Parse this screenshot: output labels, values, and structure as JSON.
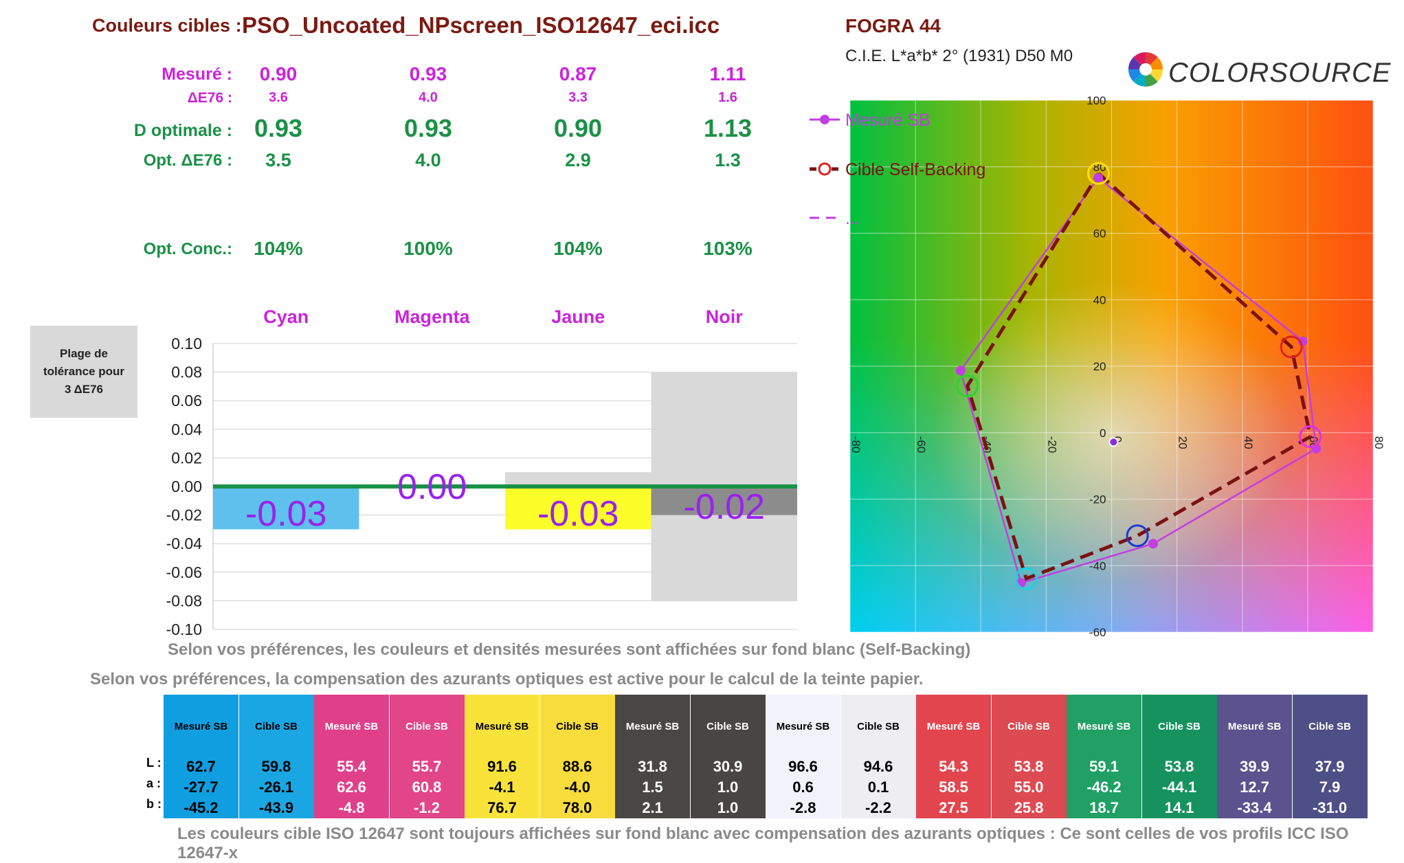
{
  "header": {
    "label": "Couleurs cibles :",
    "profile": "PSO_Uncoated_NPscreen_ISO12647_eci.icc"
  },
  "rows": {
    "mesure": {
      "label": "Mesuré :",
      "values": [
        "0.90",
        "0.93",
        "0.87",
        "1.11"
      ]
    },
    "de76": {
      "label": "ΔE76 :",
      "values": [
        "3.6",
        "4.0",
        "3.3",
        "1.6"
      ]
    },
    "dopt": {
      "label": "D optimale :",
      "values": [
        "0.93",
        "0.93",
        "0.90",
        "1.13"
      ]
    },
    "optde": {
      "label": "Opt. ΔE76 :",
      "values": [
        "3.5",
        "4.0",
        "2.9",
        "1.3"
      ]
    },
    "conc": {
      "label": "Opt. Conc.:",
      "values": [
        "104%",
        "100%",
        "104%",
        "103%"
      ]
    }
  },
  "tolerance_box": {
    "line1": "Plage de",
    "line2": "tolérance pour",
    "line3": "3 ΔE76"
  },
  "chart_data": [
    {
      "type": "bar",
      "categories": [
        "Cyan",
        "Magenta",
        "Jaune",
        "Noir"
      ],
      "values": [
        -0.03,
        0.0,
        -0.03,
        -0.02
      ],
      "labels": [
        "-0.03",
        "0.00",
        "-0.03",
        "-0.02"
      ],
      "tolerance_bands": [
        [
          0,
          0
        ],
        [
          0,
          0
        ],
        [
          -0.03,
          0.01
        ],
        [
          -0.08,
          0.08
        ]
      ],
      "bar_colors": [
        "#5ec0ec",
        "#ffffff",
        "#fdfd2a",
        "#8c8c8c"
      ],
      "ylim": [
        -0.1,
        0.1
      ],
      "yticks": [
        "0.10",
        "0.08",
        "0.06",
        "0.04",
        "0.02",
        "0.00",
        "-0.02",
        "-0.04",
        "-0.06",
        "-0.08",
        "-0.10"
      ],
      "grid": true
    },
    {
      "type": "scatter",
      "title": "FOGRA 44",
      "subtitle": "C.I.E. L*a*b* 2° (1931) D50  M0",
      "xlim": [
        -80,
        80
      ],
      "ylim": [
        -60,
        100
      ],
      "xticks": [
        "-80",
        "-60",
        "-40",
        "-20",
        "0",
        "20",
        "40",
        "60",
        "80"
      ],
      "yticks": [
        "100",
        "80",
        "60",
        "40",
        "20",
        "0",
        "-20",
        "-40",
        "-60"
      ],
      "legend": [
        "Mesuré SB",
        "Cible Self-Backing",
        "..."
      ],
      "legend_position": "top-left",
      "series": [
        {
          "name": "Mesuré SB",
          "color": "#c23ee0",
          "points": [
            [
              -4.1,
              76.7
            ],
            [
              58.5,
              27.5
            ],
            [
              62.6,
              -4.8
            ],
            [
              12.7,
              -33.4
            ],
            [
              -27.7,
              -45.2
            ],
            [
              -46.2,
              18.7
            ],
            [
              -4.1,
              76.7
            ]
          ]
        },
        {
          "name": "Cible Self-Backing",
          "color": "#7b1212",
          "points": [
            [
              -4.0,
              78.0
            ],
            [
              55.0,
              25.8
            ],
            [
              60.8,
              -1.2
            ],
            [
              7.9,
              -31.0
            ],
            [
              -26.1,
              -43.9
            ],
            [
              -44.1,
              14.1
            ],
            [
              -4.0,
              78.0
            ]
          ]
        }
      ],
      "target_circles": [
        {
          "a": -4.0,
          "b": 78.0,
          "color": "#ffe000"
        },
        {
          "a": 55.0,
          "b": 25.8,
          "color": "#e02020"
        },
        {
          "a": 60.8,
          "b": -1.2,
          "color": "#e030e0"
        },
        {
          "a": 7.9,
          "b": -31.0,
          "color": "#1a3ad0"
        },
        {
          "a": -26.1,
          "b": -43.9,
          "color": "#20d0e0"
        },
        {
          "a": -44.1,
          "b": 14.1,
          "color": "#30d030"
        }
      ],
      "paper_point": {
        "a": 0.6,
        "b": -2.8
      }
    }
  ],
  "notes": {
    "self_backing": "Selon vos préférences, les couleurs et densités mesurées sont affichées sur fond blanc (Self-Backing)",
    "azurants": "Selon vos préférences, la compensation des azurants optiques est active pour le calcul de la teinte papier.",
    "footer": "Les couleurs cible ISO 12647 sont toujours affichées sur fond blanc avec compensation des azurants optiques : Ce sont celles de vos profils ICC ISO 12647-x"
  },
  "logo": {
    "text": "COLORSOURCE"
  },
  "lab_labels": [
    "L :",
    "a :",
    "b :"
  ],
  "swatches": [
    {
      "head": "Mesuré SB",
      "bg": "#0f9ee0",
      "fg": "#000000",
      "L": "62.7",
      "a": "-27.7",
      "b": "-45.2"
    },
    {
      "head": "Cible SB",
      "bg": "#1aa6e2",
      "fg": "#000000",
      "L": "59.8",
      "a": "-26.1",
      "b": "-43.9"
    },
    {
      "head": "Mesuré SB",
      "bg": "#e0408a",
      "fg": "#ffffff",
      "L": "55.4",
      "a": "62.6",
      "b": "-4.8"
    },
    {
      "head": "Cible SB",
      "bg": "#e24588",
      "fg": "#ffffff",
      "L": "55.7",
      "a": "60.8",
      "b": "-1.2"
    },
    {
      "head": "Mesuré SB",
      "bg": "#f9e33a",
      "fg": "#000000",
      "L": "91.6",
      "a": "-4.1",
      "b": "76.7"
    },
    {
      "head": "Cible SB",
      "bg": "#f7dc3c",
      "fg": "#000000",
      "L": "88.6",
      "a": "-4.0",
      "b": "78.0"
    },
    {
      "head": "Mesuré SB",
      "bg": "#4a4644",
      "fg": "#ffffff",
      "L": "31.8",
      "a": "1.5",
      "b": "2.1"
    },
    {
      "head": "Cible SB",
      "bg": "#484544",
      "fg": "#ffffff",
      "L": "30.9",
      "a": "1.0",
      "b": "1.0"
    },
    {
      "head": "Mesuré SB",
      "bg": "#f2f3fa",
      "fg": "#000000",
      "L": "96.6",
      "a": "0.6",
      "b": "-2.8"
    },
    {
      "head": "Cible SB",
      "bg": "#eeeef2",
      "fg": "#000000",
      "L": "94.6",
      "a": "0.1",
      "b": "-2.2"
    },
    {
      "head": "Mesuré SB",
      "bg": "#e3454e",
      "fg": "#ffffff",
      "L": "54.3",
      "a": "58.5",
      "b": "27.5"
    },
    {
      "head": "Cible SB",
      "bg": "#dd4a52",
      "fg": "#ffffff",
      "L": "53.8",
      "a": "55.0",
      "b": "25.8"
    },
    {
      "head": "Mesuré SB",
      "bg": "#20a065",
      "fg": "#ffffff",
      "L": "59.1",
      "a": "-46.2",
      "b": "18.7"
    },
    {
      "head": "Cible SB",
      "bg": "#16925e",
      "fg": "#ffffff",
      "L": "53.8",
      "a": "-44.1",
      "b": "14.1"
    },
    {
      "head": "Mesuré SB",
      "bg": "#5b528e",
      "fg": "#ffffff",
      "L": "39.9",
      "a": "12.7",
      "b": "-33.4"
    },
    {
      "head": "Cible SB",
      "bg": "#4e4f86",
      "fg": "#ffffff",
      "L": "37.9",
      "a": "7.9",
      "b": "-31.0"
    }
  ]
}
